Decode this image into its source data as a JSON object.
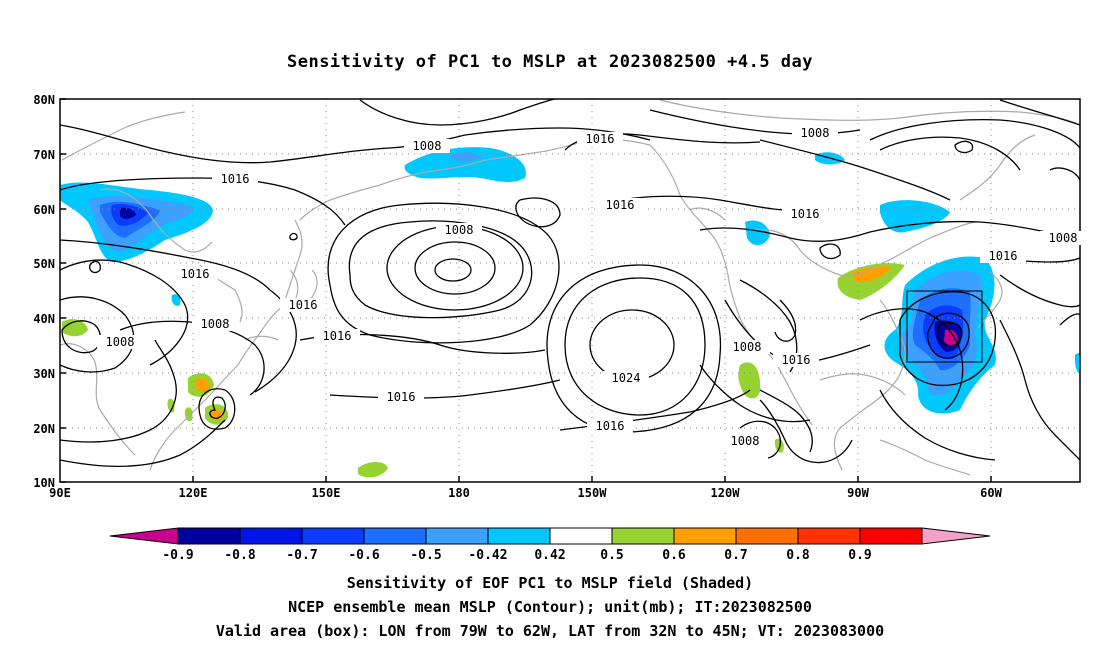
{
  "title": "Sensitivity of PC1 to MSLP at 2023082500 +4.5 day",
  "map": {
    "lat_labels": [
      "80N",
      "70N",
      "60N",
      "50N",
      "40N",
      "30N",
      "20N",
      "10N"
    ],
    "lon_labels": [
      "90E",
      "120E",
      "150E",
      "180",
      "150W",
      "120W",
      "90W",
      "60W"
    ],
    "contour_labels": [
      "1008",
      "1016",
      "1008",
      "1016",
      "1016",
      "1008",
      "1016",
      "1008",
      "1016",
      "1016",
      "1008",
      "1016",
      "1016",
      "1024",
      "1016",
      "1008",
      "1016",
      "1008",
      "1016",
      "1016",
      "1008"
    ],
    "valid_box": {
      "lon_from": "79W",
      "lon_to": "62W",
      "lat_from": "32N",
      "lat_to": "45N"
    }
  },
  "colorbar": {
    "labels": [
      "-0.9",
      "-0.8",
      "-0.7",
      "-0.6",
      "-0.5",
      "-0.42",
      "0.42",
      "0.5",
      "0.6",
      "0.7",
      "0.8",
      "0.9"
    ],
    "colors": [
      "#0000a0",
      "#0014e6",
      "#0a3cff",
      "#1e6eff",
      "#3ca0ff",
      "#00c8ff",
      "#ffffff",
      "#96d232",
      "#ffa000",
      "#ff6e00",
      "#ff3200",
      "#ff0000"
    ],
    "low_arrow_color": "#c8008c",
    "high_arrow_color": "#f5a0c8"
  },
  "footer": {
    "line1": "Sensitivity of EOF PC1 to MSLP field (Shaded)",
    "line2": "NCEP ensemble mean MSLP (Contour); unit(mb); IT:2023082500",
    "line3": "Valid area (box): LON from 79W to 62W, LAT from 32N to 45N; VT: 2023083000"
  }
}
